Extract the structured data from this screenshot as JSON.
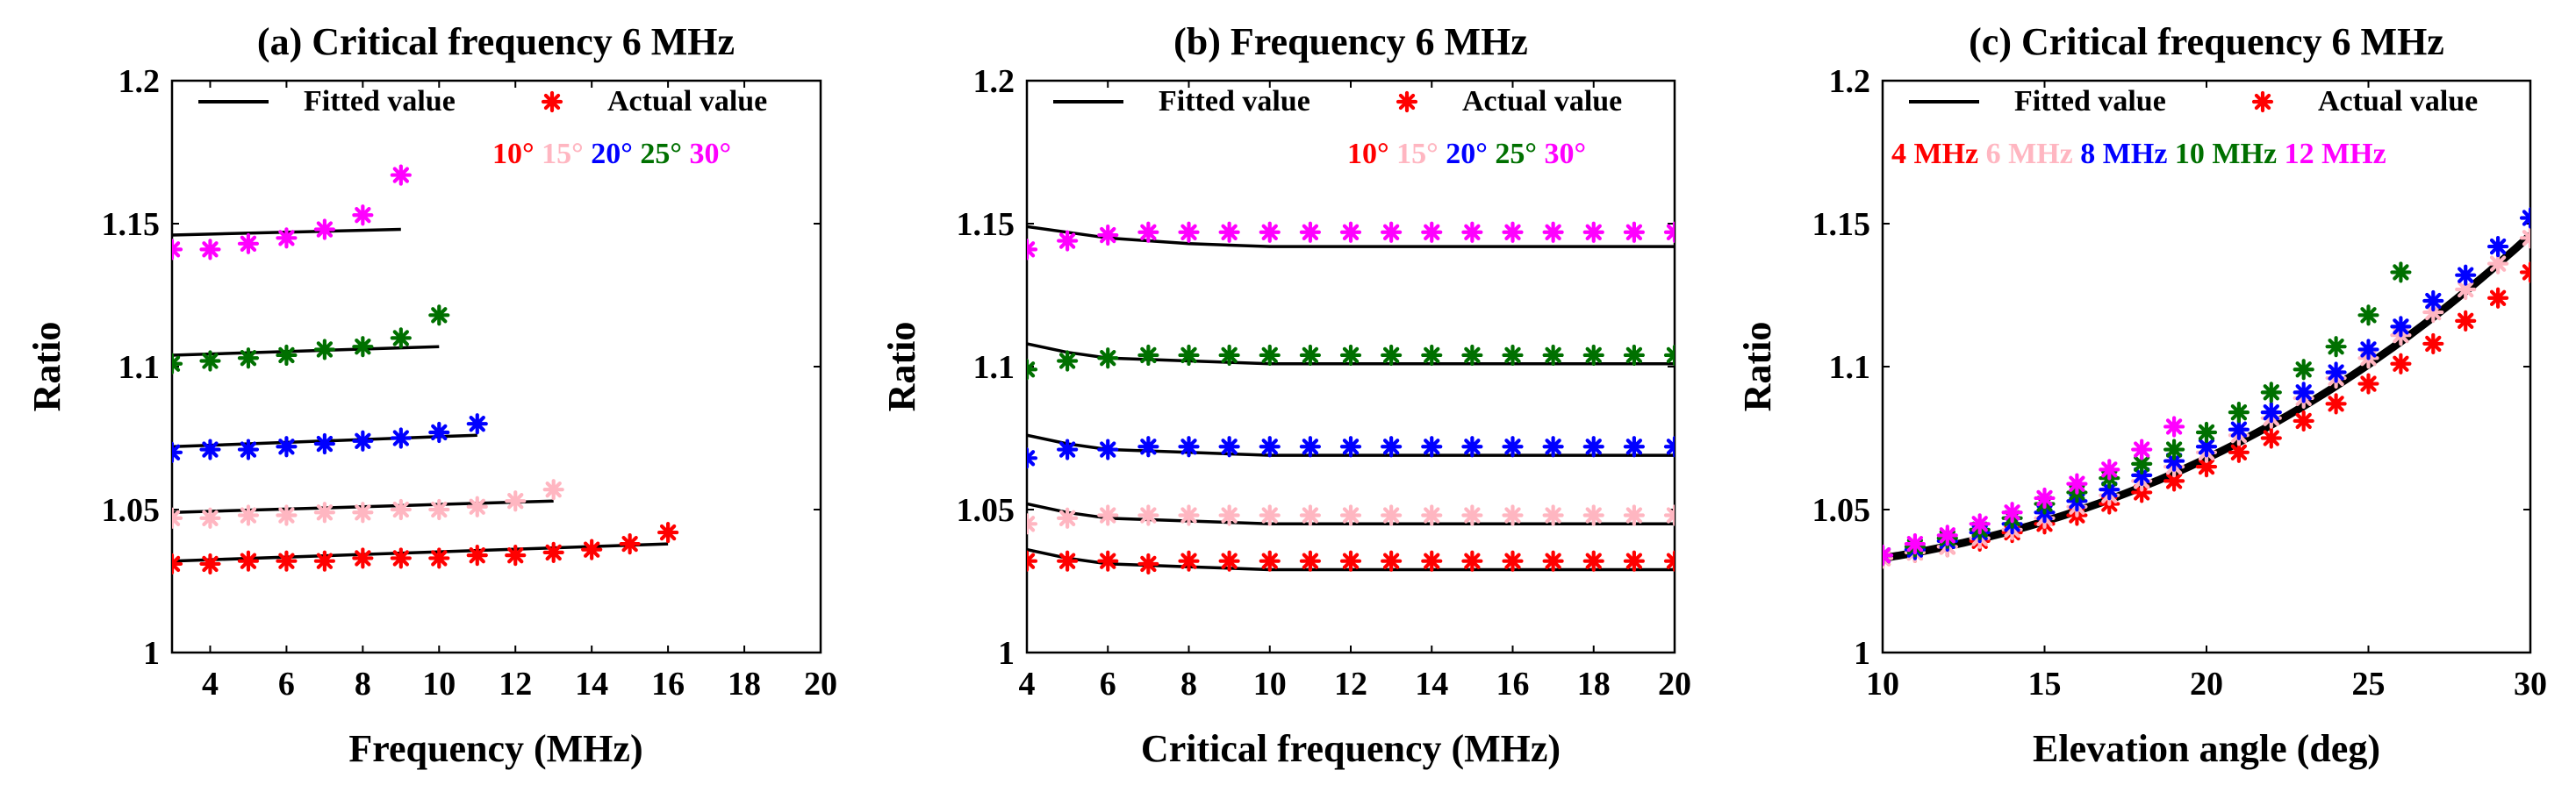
{
  "colors": {
    "fit": "#000000",
    "series": [
      "#ff0000",
      "#ffb6c1",
      "#0000ff",
      "#007000",
      "#ff00ff"
    ]
  },
  "legend_labels": {
    "fit": "Fitted value",
    "actual": "Actual value"
  },
  "chart_data": [
    {
      "id": "a",
      "type": "scatter",
      "title": "(a) Critical frequency 6 MHz",
      "xlabel": "Frequency (MHz)",
      "ylabel": "Ratio",
      "xlim": [
        3,
        20
      ],
      "ylim": [
        1,
        1.2
      ],
      "xticks": [
        4,
        6,
        8,
        10,
        12,
        14,
        16,
        18,
        20
      ],
      "yticks": [
        1,
        1.05,
        1.1,
        1.15,
        1.2
      ],
      "ytick_labels": [
        "1",
        "1.05",
        "1.1",
        "1.15",
        "1.2"
      ],
      "group_labels": [
        "10°",
        "15°",
        "20°",
        "25°",
        "30°"
      ],
      "series": [
        {
          "name": "10°",
          "x": [
            3,
            4,
            5,
            6,
            7,
            8,
            9,
            10,
            11,
            12,
            13,
            14,
            15,
            16
          ],
          "actual": [
            1.031,
            1.031,
            1.032,
            1.032,
            1.032,
            1.033,
            1.033,
            1.033,
            1.034,
            1.034,
            1.035,
            1.036,
            1.038,
            1.042
          ],
          "fit": [
            [
              3,
              1.032
            ],
            [
              16,
              1.038
            ]
          ]
        },
        {
          "name": "15°",
          "x": [
            3,
            4,
            5,
            6,
            7,
            8,
            9,
            10,
            11,
            12,
            13
          ],
          "actual": [
            1.047,
            1.047,
            1.048,
            1.048,
            1.049,
            1.049,
            1.05,
            1.05,
            1.051,
            1.053,
            1.057
          ],
          "fit": [
            [
              3,
              1.049
            ],
            [
              13,
              1.053
            ]
          ]
        },
        {
          "name": "20°",
          "x": [
            3,
            4,
            5,
            6,
            7,
            8,
            9,
            10,
            11
          ],
          "actual": [
            1.07,
            1.071,
            1.071,
            1.072,
            1.073,
            1.074,
            1.075,
            1.077,
            1.08
          ],
          "fit": [
            [
              3,
              1.072
            ],
            [
              11,
              1.076
            ]
          ]
        },
        {
          "name": "25°",
          "x": [
            3,
            4,
            5,
            6,
            7,
            8,
            9,
            10
          ],
          "actual": [
            1.101,
            1.102,
            1.103,
            1.104,
            1.106,
            1.107,
            1.11,
            1.118
          ],
          "fit": [
            [
              3,
              1.104
            ],
            [
              10,
              1.107
            ]
          ]
        },
        {
          "name": "30°",
          "x": [
            3,
            4,
            5,
            6,
            7,
            8,
            9
          ],
          "actual": [
            1.141,
            1.141,
            1.143,
            1.145,
            1.148,
            1.153,
            1.167
          ],
          "fit": [
            [
              3,
              1.146
            ],
            [
              9,
              1.148
            ]
          ]
        }
      ]
    },
    {
      "id": "b",
      "type": "scatter",
      "title": "(b) Frequency 6 MHz",
      "xlabel": "Critical frequency (MHz)",
      "ylabel": "Ratio",
      "xlim": [
        4,
        20
      ],
      "ylim": [
        1,
        1.2
      ],
      "xticks": [
        4,
        6,
        8,
        10,
        12,
        14,
        16,
        18,
        20
      ],
      "yticks": [
        1,
        1.05,
        1.1,
        1.15,
        1.2
      ],
      "ytick_labels": [
        "1",
        "1.05",
        "1.1",
        "1.15",
        "1.2"
      ],
      "group_labels": [
        "10°",
        "15°",
        "20°",
        "25°",
        "30°"
      ],
      "series": [
        {
          "name": "10°",
          "x": [
            4,
            5,
            6,
            7,
            8,
            9,
            10,
            11,
            12,
            13,
            14,
            15,
            16,
            17,
            18,
            19,
            20
          ],
          "actual": [
            1.032,
            1.032,
            1.032,
            1.031,
            1.032,
            1.032,
            1.032,
            1.032,
            1.032,
            1.032,
            1.032,
            1.032,
            1.032,
            1.032,
            1.032,
            1.032,
            1.032
          ],
          "fit": [
            [
              4,
              1.036
            ],
            [
              5,
              1.033
            ],
            [
              6,
              1.031
            ],
            [
              8,
              1.03
            ],
            [
              10,
              1.029
            ],
            [
              14,
              1.029
            ],
            [
              20,
              1.029
            ]
          ]
        },
        {
          "name": "15°",
          "x": [
            4,
            5,
            6,
            7,
            8,
            9,
            10,
            11,
            12,
            13,
            14,
            15,
            16,
            17,
            18,
            19,
            20
          ],
          "actual": [
            1.045,
            1.047,
            1.048,
            1.048,
            1.048,
            1.048,
            1.048,
            1.048,
            1.048,
            1.048,
            1.048,
            1.048,
            1.048,
            1.048,
            1.048,
            1.048,
            1.048
          ],
          "fit": [
            [
              4,
              1.052
            ],
            [
              5,
              1.049
            ],
            [
              6,
              1.047
            ],
            [
              8,
              1.046
            ],
            [
              10,
              1.045
            ],
            [
              14,
              1.045
            ],
            [
              20,
              1.045
            ]
          ]
        },
        {
          "name": "20°",
          "x": [
            4,
            5,
            6,
            7,
            8,
            9,
            10,
            11,
            12,
            13,
            14,
            15,
            16,
            17,
            18,
            19,
            20
          ],
          "actual": [
            1.068,
            1.071,
            1.071,
            1.072,
            1.072,
            1.072,
            1.072,
            1.072,
            1.072,
            1.072,
            1.072,
            1.072,
            1.072,
            1.072,
            1.072,
            1.072,
            1.072
          ],
          "fit": [
            [
              4,
              1.076
            ],
            [
              5,
              1.073
            ],
            [
              6,
              1.071
            ],
            [
              8,
              1.07
            ],
            [
              10,
              1.069
            ],
            [
              14,
              1.069
            ],
            [
              20,
              1.069
            ]
          ]
        },
        {
          "name": "25°",
          "x": [
            4,
            5,
            6,
            7,
            8,
            9,
            10,
            11,
            12,
            13,
            14,
            15,
            16,
            17,
            18,
            19,
            20
          ],
          "actual": [
            1.099,
            1.102,
            1.103,
            1.104,
            1.104,
            1.104,
            1.104,
            1.104,
            1.104,
            1.104,
            1.104,
            1.104,
            1.104,
            1.104,
            1.104,
            1.104,
            1.104
          ],
          "fit": [
            [
              4,
              1.108
            ],
            [
              5,
              1.105
            ],
            [
              6,
              1.103
            ],
            [
              8,
              1.102
            ],
            [
              10,
              1.101
            ],
            [
              14,
              1.101
            ],
            [
              20,
              1.101
            ]
          ]
        },
        {
          "name": "30°",
          "x": [
            4,
            5,
            6,
            7,
            8,
            9,
            10,
            11,
            12,
            13,
            14,
            15,
            16,
            17,
            18,
            19,
            20
          ],
          "actual": [
            1.141,
            1.144,
            1.146,
            1.147,
            1.147,
            1.147,
            1.147,
            1.147,
            1.147,
            1.147,
            1.147,
            1.147,
            1.147,
            1.147,
            1.147,
            1.147,
            1.147
          ],
          "fit": [
            [
              4,
              1.149
            ],
            [
              5,
              1.147
            ],
            [
              6,
              1.145
            ],
            [
              8,
              1.143
            ],
            [
              10,
              1.142
            ],
            [
              14,
              1.142
            ],
            [
              20,
              1.142
            ]
          ]
        }
      ]
    },
    {
      "id": "c",
      "type": "scatter",
      "title": "(c) Critical frequency 6 MHz",
      "xlabel": "Elevation angle (deg)",
      "ylabel": "Ratio",
      "xlim": [
        10,
        30
      ],
      "ylim": [
        1,
        1.2
      ],
      "xticks": [
        10,
        15,
        20,
        25,
        30
      ],
      "yticks": [
        1,
        1.05,
        1.1,
        1.15,
        1.2
      ],
      "ytick_labels": [
        "1",
        "1.05",
        "1.1",
        "1.15",
        "1.2"
      ],
      "group_labels": [
        "4 MHz",
        "6 MHz",
        "8 MHz",
        "10 MHz",
        "12 MHz"
      ],
      "series": [
        {
          "name": "4 MHz",
          "x": [
            10,
            11,
            12,
            13,
            14,
            15,
            16,
            17,
            18,
            19,
            20,
            21,
            22,
            23,
            24,
            25,
            26,
            27,
            28,
            29,
            30
          ],
          "actual": [
            1.033,
            1.035,
            1.037,
            1.039,
            1.042,
            1.045,
            1.048,
            1.052,
            1.056,
            1.06,
            1.065,
            1.07,
            1.075,
            1.081,
            1.087,
            1.094,
            1.101,
            1.108,
            1.116,
            1.124,
            1.133
          ],
          "fit": [
            [
              10,
              1.033
            ],
            [
              30,
              1.146
            ]
          ]
        },
        {
          "name": "6 MHz",
          "x": [
            10,
            11,
            12,
            13,
            14,
            15,
            16,
            17,
            18,
            19,
            20,
            21,
            22,
            23,
            24,
            25,
            26,
            27,
            28,
            29,
            30
          ],
          "actual": [
            1.033,
            1.035,
            1.037,
            1.04,
            1.043,
            1.047,
            1.051,
            1.055,
            1.06,
            1.065,
            1.07,
            1.076,
            1.082,
            1.089,
            1.096,
            1.103,
            1.111,
            1.119,
            1.127,
            1.136,
            1.145
          ],
          "fit": [
            [
              10,
              1.033
            ],
            [
              30,
              1.146
            ]
          ]
        },
        {
          "name": "8 MHz",
          "x": [
            10,
            11,
            12,
            13,
            14,
            15,
            16,
            17,
            18,
            19,
            20,
            21,
            22,
            23,
            24,
            25,
            26,
            27,
            28,
            29,
            30
          ],
          "actual": [
            1.034,
            1.036,
            1.039,
            1.042,
            1.045,
            1.049,
            1.053,
            1.057,
            1.062,
            1.067,
            1.072,
            1.078,
            1.084,
            1.091,
            1.098,
            1.106,
            1.114,
            1.123,
            1.132,
            1.142,
            1.152
          ],
          "fit": [
            [
              10,
              1.033
            ],
            [
              30,
              1.146
            ]
          ]
        },
        {
          "name": "10 MHz",
          "x": [
            10,
            11,
            12,
            13,
            14,
            15,
            16,
            17,
            18,
            19,
            20,
            21,
            22,
            23,
            24,
            25,
            26
          ],
          "actual": [
            1.034,
            1.037,
            1.04,
            1.043,
            1.047,
            1.052,
            1.056,
            1.061,
            1.066,
            1.071,
            1.077,
            1.084,
            1.091,
            1.099,
            1.107,
            1.118,
            1.133
          ],
          "fit": [
            [
              10,
              1.033
            ],
            [
              30,
              1.146
            ]
          ]
        },
        {
          "name": "12 MHz",
          "x": [
            10,
            11,
            12,
            13,
            14,
            15,
            16,
            17,
            18,
            19
          ],
          "actual": [
            1.034,
            1.038,
            1.041,
            1.045,
            1.049,
            1.054,
            1.059,
            1.064,
            1.071,
            1.079
          ],
          "fit": [
            [
              10,
              1.033
            ],
            [
              30,
              1.146
            ]
          ]
        }
      ]
    }
  ]
}
